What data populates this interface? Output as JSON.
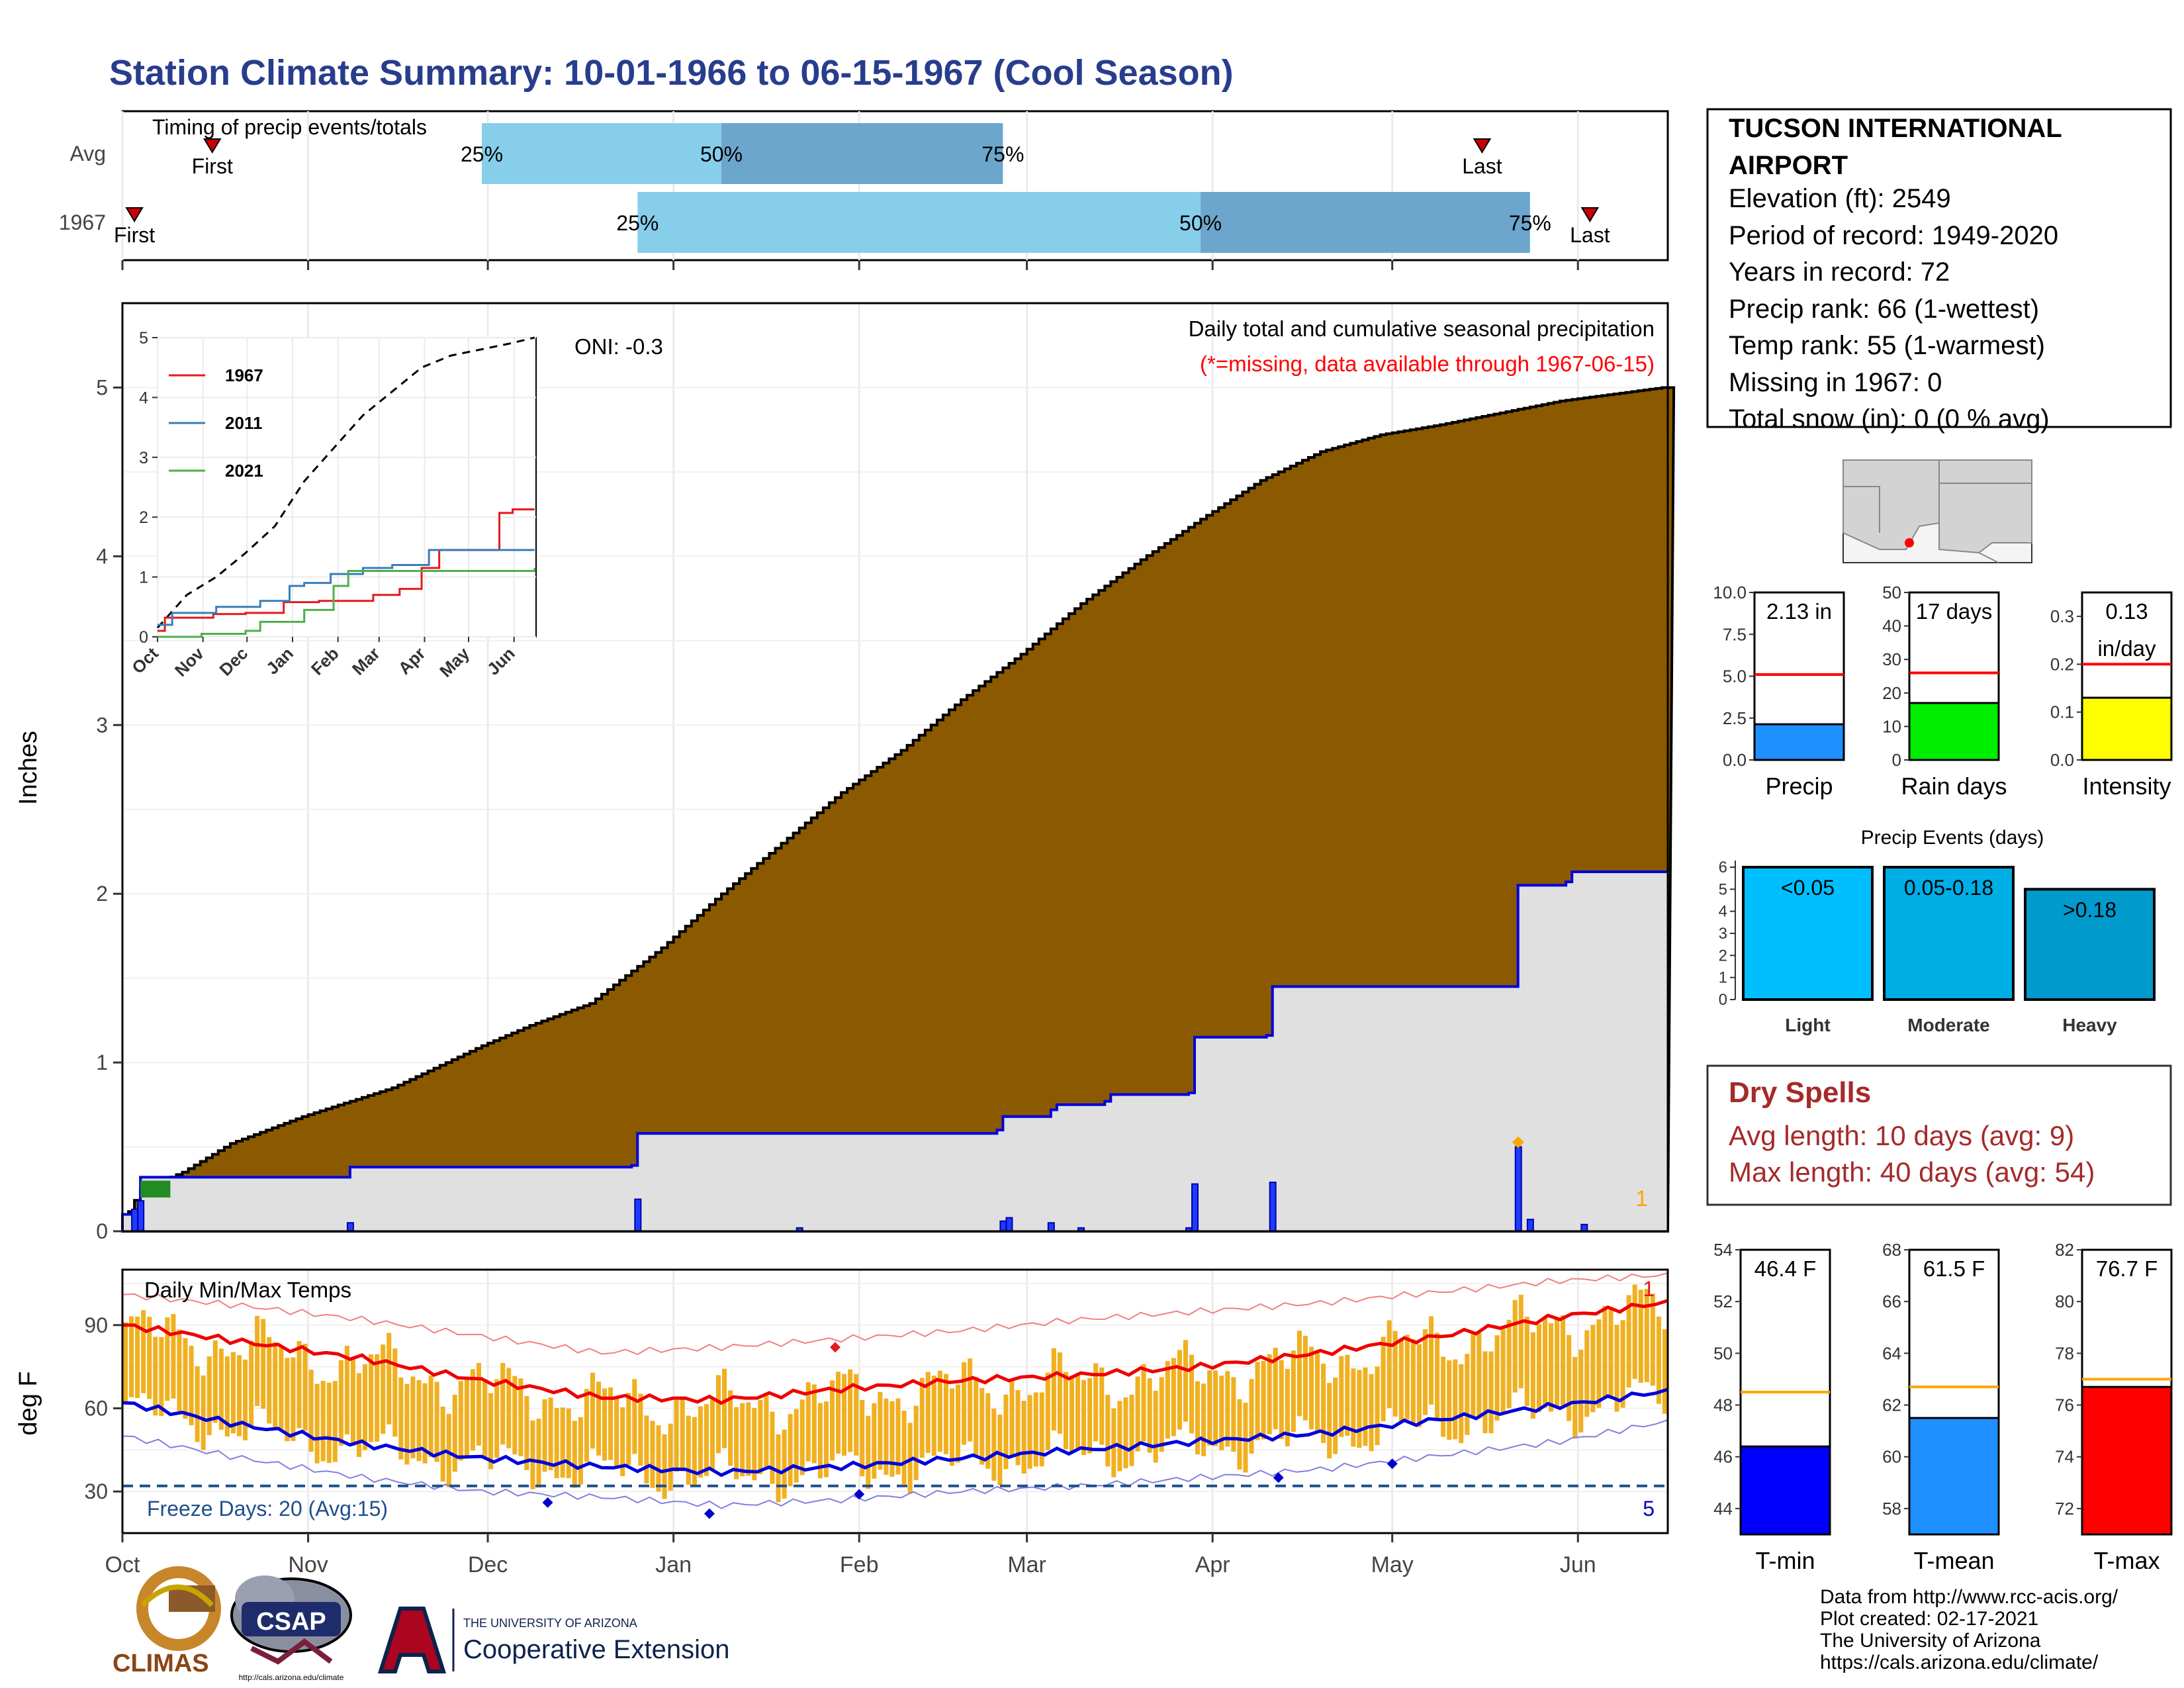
{
  "title": "Station Climate Summary: 10-01-1966 to 06-15-1967 (Cool Season)",
  "station": {
    "name_line1": "TUCSON INTERNATIONAL",
    "name_line2": "AIRPORT",
    "elevation": "Elevation (ft): 2549",
    "period": "Period of record: 1949-2020",
    "years": "Years in record: 72",
    "precip_rank": "Precip rank: 66 (1-wettest)",
    "temp_rank": "Temp rank: 55 (1-warmest)",
    "missing": "Missing in 1967: 0",
    "snow": "Total snow (in): 0 (0 % avg)"
  },
  "months": [
    "Oct",
    "Nov",
    "Dec",
    "Jan",
    "Feb",
    "Mar",
    "Apr",
    "May",
    "Jun"
  ],
  "timing": {
    "label": "Timing of precip events/totals",
    "rows": [
      {
        "name": "Avg",
        "first": "First",
        "last": "Last",
        "p25": "25%",
        "p50": "50%",
        "p75": "75%",
        "first_day": 15,
        "p25_day": 60,
        "p50_day": 100,
        "p75_day": 147,
        "last_day": 227
      },
      {
        "name": "1967",
        "first": "First",
        "last": "Last",
        "p25": "25%",
        "p50": "50%",
        "p75": "75%",
        "first_day": 2,
        "p25_day": 86,
        "p50_day": 180,
        "p75_day": 235,
        "last_day": 245
      }
    ]
  },
  "chart_data": [
    {
      "type": "area",
      "title": "Daily total and cumulative seasonal precipitation",
      "subtitle": "(*=missing, data available through 1967-06-15)",
      "ylabel": "Inches",
      "xlabel": "",
      "ylim": [
        0,
        5.5
      ],
      "yticks": [
        0,
        1,
        2,
        3,
        4,
        5
      ],
      "oni": "ONI: -0.3",
      "count_label": "1",
      "avg_cumulative": {
        "day": [
          0,
          3,
          10,
          18,
          30,
          45,
          60,
          68,
          78,
          90,
          100,
          110,
          120,
          130,
          140,
          150,
          160,
          170,
          180,
          190,
          200,
          210,
          220,
          230,
          240,
          257
        ],
        "value": [
          0.05,
          0.25,
          0.35,
          0.52,
          0.68,
          0.85,
          1.1,
          1.22,
          1.35,
          1.68,
          2.0,
          2.3,
          2.6,
          2.85,
          3.15,
          3.42,
          3.72,
          3.98,
          4.22,
          4.45,
          4.62,
          4.72,
          4.78,
          4.85,
          4.92,
          5.0
        ]
      },
      "cum_1967": {
        "day": [
          0,
          3,
          37,
          38,
          85,
          86,
          146,
          147,
          155,
          156,
          164,
          165,
          178,
          179,
          191,
          192,
          232,
          233,
          241,
          242,
          257
        ],
        "value": [
          0.1,
          0.32,
          0.32,
          0.38,
          0.39,
          0.58,
          0.6,
          0.68,
          0.72,
          0.75,
          0.77,
          0.81,
          0.82,
          1.15,
          1.16,
          1.45,
          1.45,
          2.05,
          2.07,
          2.13,
          2.13
        ]
      },
      "daily_bars": [
        {
          "day": 2,
          "value": 0.13
        },
        {
          "day": 3,
          "value": 0.18
        },
        {
          "day": 38,
          "value": 0.05
        },
        {
          "day": 86,
          "value": 0.19
        },
        {
          "day": 113,
          "value": 0.02
        },
        {
          "day": 147,
          "value": 0.06
        },
        {
          "day": 148,
          "value": 0.08
        },
        {
          "day": 155,
          "value": 0.05
        },
        {
          "day": 160,
          "value": 0.02
        },
        {
          "day": 178,
          "value": 0.02
        },
        {
          "day": 179,
          "value": 0.28
        },
        {
          "day": 192,
          "value": 0.29
        },
        {
          "day": 233,
          "value": 0.5
        },
        {
          "day": 235,
          "value": 0.07
        },
        {
          "day": 244,
          "value": 0.04
        }
      ],
      "inset": {
        "ylim": [
          0,
          5
        ],
        "yticks": [
          0,
          1,
          2,
          3,
          4,
          5
        ],
        "legend": [
          {
            "name": "1967",
            "color": "#e41a1c"
          },
          {
            "name": "2011",
            "color": "#377eb8"
          },
          {
            "name": "2021",
            "color": "#4daf4a"
          }
        ],
        "series": [
          {
            "name": "1967",
            "color": "#e41a1c",
            "day": [
              0,
              5,
              38,
              60,
              86,
              110,
              147,
              165,
              180,
              192,
              233,
              242,
              257
            ],
            "value": [
              0.1,
              0.32,
              0.38,
              0.4,
              0.58,
              0.6,
              0.7,
              0.8,
              1.15,
              1.45,
              2.07,
              2.13,
              2.13
            ]
          },
          {
            "name": "2011",
            "color": "#377eb8",
            "day": [
              0,
              10,
              40,
              70,
              90,
              100,
              118,
              140,
              150,
              160,
              185,
              257
            ],
            "value": [
              0.2,
              0.4,
              0.5,
              0.6,
              0.85,
              0.9,
              1.05,
              1.15,
              1.15,
              1.2,
              1.45,
              1.45
            ]
          },
          {
            "name": "2021",
            "color": "#4daf4a",
            "day": [
              0,
              30,
              60,
              70,
              100,
              120,
              130,
              257
            ],
            "value": [
              0.0,
              0.05,
              0.1,
              0.25,
              0.45,
              0.85,
              1.1,
              1.15
            ]
          }
        ],
        "avg": {
          "day": [
            0,
            20,
            40,
            60,
            80,
            100,
            120,
            140,
            160,
            180,
            200,
            220,
            240,
            257
          ],
          "value": [
            0.15,
            0.7,
            1.0,
            1.4,
            1.85,
            2.6,
            3.15,
            3.7,
            4.1,
            4.5,
            4.7,
            4.8,
            4.9,
            5.0
          ]
        }
      }
    },
    {
      "type": "bar",
      "title": "Daily Min/Max Temps",
      "ylabel": "deg F",
      "ylim": [
        15,
        110
      ],
      "yticks": [
        30,
        60,
        90
      ],
      "freeze_label": "Freeze Days: 20 (Avg:15)",
      "freeze_line": 32,
      "count_max": "1",
      "count_min": "5",
      "avg_max": {
        "day": [
          0,
          20,
          40,
          60,
          80,
          100,
          120,
          140,
          160,
          180,
          200,
          220,
          240,
          257
        ],
        "value": [
          90,
          84,
          78,
          70,
          64,
          63,
          67,
          70,
          72,
          75,
          80,
          86,
          93,
          98
        ]
      },
      "avg_min": {
        "day": [
          0,
          20,
          40,
          60,
          80,
          100,
          120,
          140,
          160,
          180,
          200,
          220,
          240,
          257
        ],
        "value": [
          62,
          54,
          47,
          42,
          39,
          37,
          39,
          42,
          45,
          48,
          51,
          56,
          61,
          66
        ]
      },
      "rec_max": {
        "day": [
          0,
          20,
          40,
          60,
          80,
          100,
          120,
          140,
          160,
          180,
          200,
          220,
          240,
          257
        ],
        "value": [
          101,
          97,
          92,
          86,
          80,
          82,
          85,
          88,
          92,
          95,
          98,
          102,
          106,
          108
        ]
      },
      "rec_min": {
        "day": [
          0,
          20,
          40,
          60,
          80,
          100,
          120,
          140,
          160,
          180,
          200,
          220,
          240,
          257
        ],
        "value": [
          50,
          42,
          35,
          30,
          28,
          25,
          27,
          30,
          32,
          35,
          38,
          43,
          48,
          55
        ]
      },
      "markers": [
        {
          "day": 71,
          "value": 26,
          "color": "#0000cc"
        },
        {
          "day": 98,
          "value": 22,
          "color": "#0000cc"
        },
        {
          "day": 123,
          "value": 29,
          "color": "#0000cc"
        },
        {
          "day": 119,
          "value": 82,
          "color": "#e41a1c"
        },
        {
          "day": 193,
          "value": 35,
          "color": "#0000cc"
        },
        {
          "day": 212,
          "value": 40,
          "color": "#0000cc"
        }
      ]
    },
    {
      "type": "bar",
      "title": "",
      "categories": [
        "Precip",
        "Rain days",
        "Intensity"
      ],
      "values": [
        2.13,
        17,
        0.13
      ],
      "labels": [
        "2.13 in",
        "17 days",
        "0.13 in/day"
      ],
      "avg_lines": [
        5.1,
        26,
        0.2
      ],
      "ylims": [
        [
          0,
          10
        ],
        [
          0,
          50
        ],
        [
          0,
          0.35
        ]
      ],
      "yticks": [
        [
          "0.0",
          "2.5",
          "5.0",
          "7.5",
          "10.0"
        ],
        [
          "0",
          "10",
          "20",
          "30",
          "40",
          "50"
        ],
        [
          "0.0",
          "0.1",
          "0.2",
          "0.3"
        ]
      ],
      "colors": [
        "#1e90ff",
        "#00ee00",
        "#ffff00"
      ]
    },
    {
      "type": "bar",
      "title": "Precip Events (days)",
      "categories": [
        "Light",
        "Moderate",
        "Heavy"
      ],
      "bar_labels": [
        "<0.05",
        "0.05-0.18",
        ">0.18"
      ],
      "values": [
        6,
        6,
        5
      ],
      "ylim": [
        0,
        6.3
      ],
      "yticks": [
        0,
        1,
        2,
        3,
        4,
        5,
        6
      ],
      "colors": [
        "#00bfff",
        "#00aee6",
        "#009acd"
      ]
    },
    {
      "type": "bar",
      "title": "",
      "categories": [
        "T-min",
        "T-mean",
        "T-max"
      ],
      "values": [
        46.4,
        61.5,
        76.7
      ],
      "labels": [
        "46.4 F",
        "61.5 F",
        "76.7 F"
      ],
      "avg_lines": [
        48.5,
        62.7,
        77.0
      ],
      "ylims": [
        [
          43,
          54
        ],
        [
          57,
          68
        ],
        [
          71,
          82
        ]
      ],
      "yticks": [
        [
          44,
          46,
          48,
          50,
          52,
          54
        ],
        [
          58,
          60,
          62,
          64,
          66,
          68
        ],
        [
          72,
          74,
          76,
          78,
          80,
          82
        ]
      ],
      "colors": [
        "#0000ff",
        "#1e90ff",
        "#ff0000"
      ]
    }
  ],
  "dry_spells": {
    "title": "Dry Spells",
    "avg": "Avg length: 10 days (avg: 9)",
    "max": "Max length: 40 days (avg: 54)"
  },
  "credits": {
    "line1": "Data from http://www.rcc-acis.org/",
    "line2": "Plot created: 02-17-2021",
    "line3": "The University of Arizona",
    "line4": "https://cals.arizona.edu/climate/"
  },
  "logos": {
    "climas": "CLIMAS",
    "csap": "CSAP",
    "csap_url": "http://cals.arizona.edu/climate",
    "ua_small": "THE UNIVERSITY OF ARIZONA",
    "ua_big": "Cooperative Extension"
  }
}
